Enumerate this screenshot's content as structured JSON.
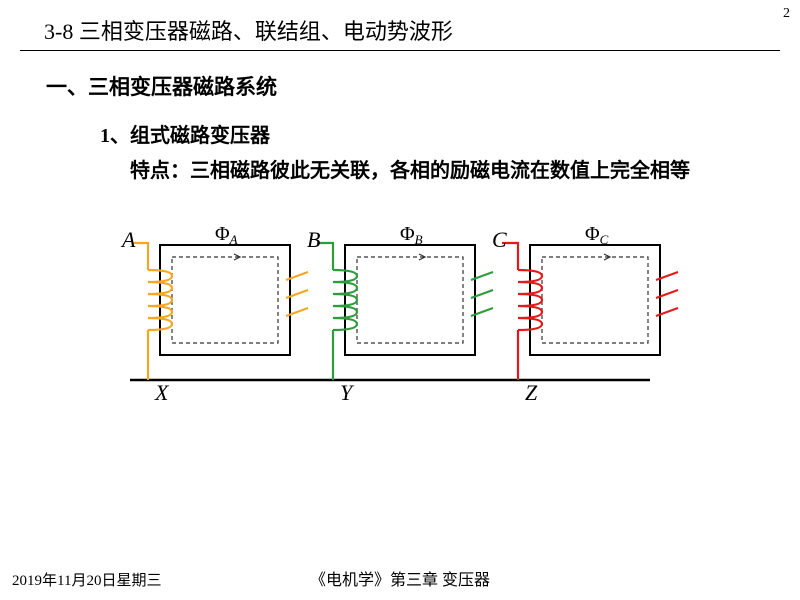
{
  "page_number": "2",
  "title": "3-8 三相变压器磁路、联结组、电动势波形",
  "section_heading": "一、三相变压器磁路系统",
  "sub_heading": "1、组式磁路变压器",
  "description": "特点：三相磁路彼此无关联，各相的励磁电流在数值上完全相等",
  "footer_date": "2019年11月20日星期三",
  "footer_center": "《电机学》第三章  变压器",
  "diagram": {
    "phases": [
      {
        "top_label": "A",
        "bottom_label": "X",
        "flux": "Φ",
        "flux_sub": "A",
        "color": "#f5a623"
      },
      {
        "top_label": "B",
        "bottom_label": "Y",
        "flux": "Φ",
        "flux_sub": "B",
        "color": "#2e9b3d"
      },
      {
        "top_label": "C",
        "bottom_label": "Z",
        "flux": "Φ",
        "flux_sub": "C",
        "color": "#e41a1a"
      }
    ],
    "core_stroke": "#000000",
    "dashed_stroke": "#333333",
    "core_width": 130,
    "core_height": 110,
    "gap": 55
  }
}
